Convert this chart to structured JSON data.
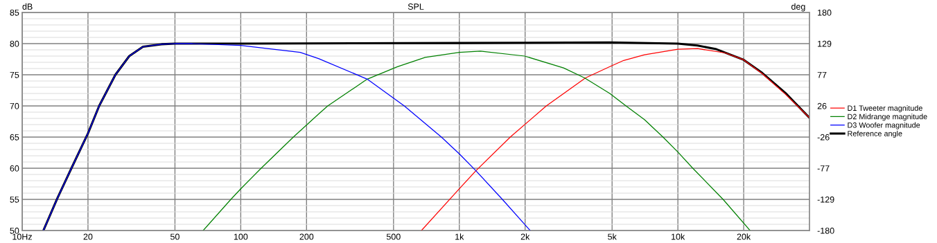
{
  "chart_data": {
    "type": "line",
    "title": "SPL",
    "ylabel": "dB",
    "y2label": "deg",
    "log": "x",
    "grid": true,
    "legend": "right",
    "line_style": "solid",
    "marker": "none",
    "xlim": [
      10,
      40000
    ],
    "xticks": [
      {
        "value": 10,
        "label": "10Hz"
      },
      20,
      50,
      100,
      200,
      500,
      {
        "value": 1000,
        "label": "1k"
      },
      {
        "value": 2000,
        "label": "2k"
      },
      {
        "value": 5000,
        "label": "5k"
      },
      {
        "value": 10000,
        "label": "10k"
      },
      {
        "value": 20000,
        "label": "20k"
      }
    ],
    "ylim": [
      50,
      85
    ],
    "yticks": [
      50,
      55,
      60,
      65,
      70,
      75,
      80,
      85
    ],
    "y2lim": [
      -180,
      180
    ],
    "y2ticks": [
      {
        "value": -180,
        "label": "-180"
      },
      {
        "value": -128.57,
        "label": "-129"
      },
      {
        "value": -77.14,
        "label": "-77"
      },
      {
        "value": -25.71,
        "label": "-26"
      },
      {
        "value": 25.71,
        "label": "26"
      },
      {
        "value": 77.14,
        "label": "77"
      },
      {
        "value": 128.57,
        "label": "129"
      },
      {
        "value": 180,
        "label": "180"
      }
    ],
    "series": [
      {
        "name": "D1 Tweeter magnitude",
        "color": "#ff0000",
        "x": [
          671,
          1000,
          1191,
          1710,
          2500,
          3780,
          4880,
          5650,
          7030,
          10000,
          12300,
          16500,
          20000,
          24300,
          31000,
          40000
        ],
        "values": [
          50,
          56.7,
          59.6,
          65,
          70,
          74.5,
          76.3,
          77.3,
          78.2,
          79.1,
          79.2,
          78.5,
          77.4,
          75.2,
          71.9,
          68.1
        ]
      },
      {
        "name": "D2 Midrange magnitude",
        "color": "#008000",
        "x": [
          67.3,
          90.1,
          100,
          124,
          174,
          227,
          250,
          379,
          521,
          698,
          1000,
          1250,
          1990,
          3000,
          3740,
          4880,
          5790,
          7030,
          8550,
          10000,
          11700,
          16100,
          21400
        ],
        "values": [
          50,
          55,
          56.7,
          60,
          65,
          68.7,
          70,
          74.3,
          76.3,
          77.8,
          78.6,
          78.8,
          78,
          76.1,
          74.5,
          72,
          70,
          67.8,
          65,
          62.6,
          60,
          55,
          50
        ]
      },
      {
        "name": "D3 Woofer magnitude",
        "color": "#0000ff",
        "x": [
          12.5,
          14.5,
          16.8,
          20,
          22.5,
          26.7,
          30.9,
          35.7,
          43.4,
          50,
          60,
          100,
          187,
          227,
          379,
          560,
          828,
          1000,
          1191,
          1574,
          2110
        ],
        "values": [
          50,
          55.2,
          60,
          65.6,
          70,
          75,
          78,
          79.5,
          79.9,
          80,
          80,
          79.7,
          78.6,
          77.6,
          74.3,
          70,
          65,
          62.3,
          59.6,
          55,
          50
        ]
      },
      {
        "name": "Reference angle",
        "color": "#000000",
        "x": [
          12.5,
          14.5,
          16.8,
          20,
          22.5,
          26.7,
          30.9,
          35.7,
          43.4,
          50,
          100,
          1000,
          4880,
          10000,
          12300,
          15000,
          20000,
          24300,
          31000,
          40000
        ],
        "values": [
          50,
          55.2,
          60,
          65.6,
          70,
          75,
          78,
          79.5,
          79.9,
          80,
          80,
          80.1,
          80.2,
          80,
          79.7,
          79.1,
          77.4,
          75.3,
          72.1,
          68.1
        ]
      }
    ]
  }
}
